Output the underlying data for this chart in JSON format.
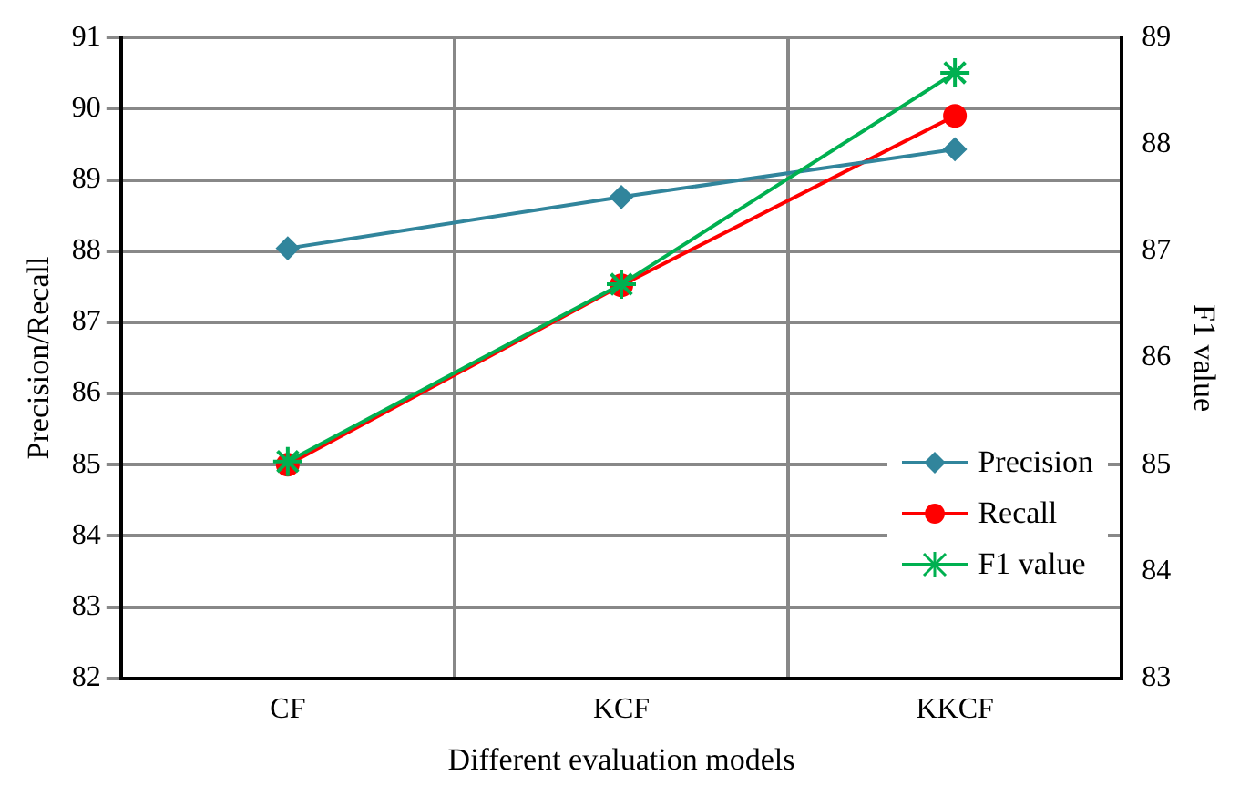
{
  "chart_data": {
    "type": "line",
    "xlabel": "Different evaluation models",
    "ylabel": "Precision/Recall",
    "y2label": "F1 value",
    "categories": [
      "CF",
      "KCF",
      "KKCF"
    ],
    "series": [
      {
        "name": "Precision",
        "color": "#31859c",
        "marker": "diamond",
        "values": [
          88.04,
          88.76,
          89.43
        ]
      },
      {
        "name": "Recall",
        "color": "#ff0000",
        "marker": "circle",
        "values": [
          85.0,
          87.52,
          89.9
        ]
      },
      {
        "name": "F1 value",
        "color": "#00b050",
        "marker": "cross",
        "axis": "y2",
        "values": [
          85.03,
          86.69,
          88.67
        ]
      }
    ],
    "ylim": [
      82,
      91
    ],
    "yticks": [
      82,
      83,
      84,
      85,
      86,
      87,
      88,
      89,
      90,
      91
    ],
    "y2lim": [
      83,
      89
    ],
    "y2ticks": [
      83,
      84,
      85,
      86,
      87,
      88,
      89
    ],
    "grid": true,
    "legend": "bottom right"
  }
}
